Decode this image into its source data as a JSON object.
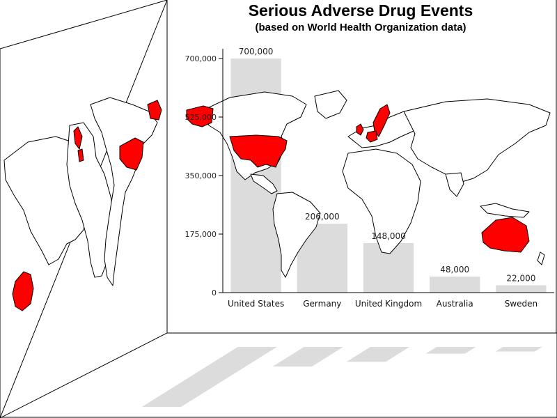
{
  "chart_data": {
    "type": "bar",
    "title": "Serious Adverse Drug Events",
    "subtitle": "(based on World Health Organization data)",
    "categories": [
      "United States",
      "Germany",
      "United Kingdom",
      "Australia",
      "Sweden"
    ],
    "values": [
      700000,
      206000,
      148000,
      48000,
      22000
    ],
    "value_labels": [
      "700,000",
      "206,000",
      "148,000",
      "48,000",
      "22,000"
    ],
    "yticks": [
      0,
      175000,
      350000,
      525000,
      700000
    ],
    "ytick_labels": [
      "0",
      "175,000",
      "350,000",
      "525,000",
      "700,000"
    ],
    "ylim": [
      0,
      700000
    ],
    "xlabel": "",
    "ylabel": "",
    "grid": false,
    "legend": "none",
    "bar_color": "#dcdcdc",
    "highlighted_countries": [
      "United States",
      "Germany",
      "United Kingdom",
      "Australia",
      "Sweden"
    ],
    "highlight_color": "#ff0000"
  }
}
